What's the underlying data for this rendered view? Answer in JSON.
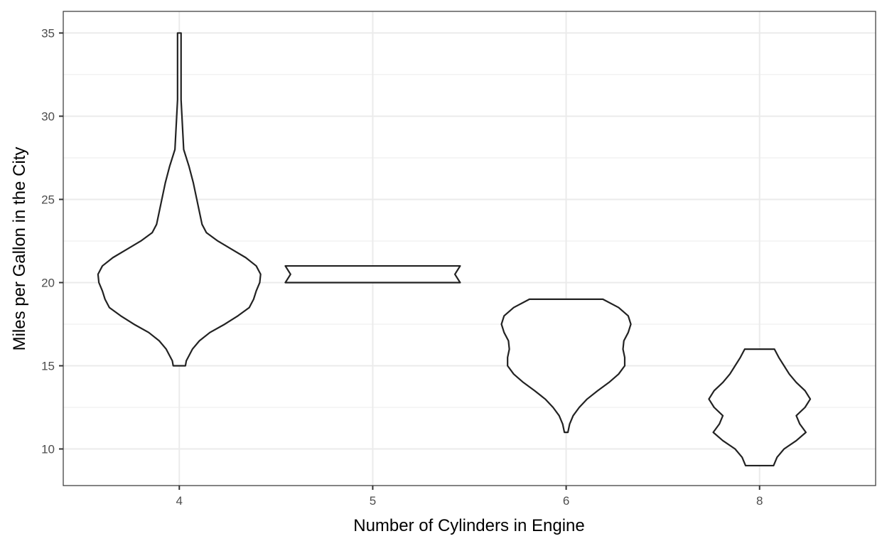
{
  "chart_data": {
    "type": "violin",
    "xlabel": "Number of Cylinders in Engine",
    "ylabel": "Miles per Gallon in the City",
    "categories": [
      "4",
      "5",
      "6",
      "8"
    ],
    "ylim": [
      7.8,
      36.3
    ],
    "yticks": [
      10,
      15,
      20,
      25,
      30,
      35
    ],
    "yminor": [
      12.5,
      17.5,
      22.5,
      27.5,
      32.5
    ],
    "grid": true,
    "fill_color": "#ffffff",
    "line_color": "#222222",
    "violins": [
      {
        "category": "4",
        "profile": [
          [
            15,
            0.07
          ],
          [
            15.3,
            0.08
          ],
          [
            15.6,
            0.11
          ],
          [
            16.0,
            0.15
          ],
          [
            16.5,
            0.23
          ],
          [
            17.0,
            0.35
          ],
          [
            17.5,
            0.52
          ],
          [
            18.0,
            0.67
          ],
          [
            18.5,
            0.8
          ],
          [
            19.0,
            0.85
          ],
          [
            19.5,
            0.88
          ],
          [
            20.0,
            0.92
          ],
          [
            20.5,
            0.93
          ],
          [
            21.0,
            0.88
          ],
          [
            21.5,
            0.76
          ],
          [
            22.0,
            0.6
          ],
          [
            22.5,
            0.44
          ],
          [
            23.0,
            0.31
          ],
          [
            23.5,
            0.26
          ],
          [
            24.0,
            0.24
          ],
          [
            25.0,
            0.2
          ],
          [
            26.0,
            0.16
          ],
          [
            27.0,
            0.11
          ],
          [
            28.0,
            0.05
          ],
          [
            29.0,
            0.04
          ],
          [
            30.0,
            0.03
          ],
          [
            31.0,
            0.02
          ],
          [
            32.0,
            0.02
          ],
          [
            33.0,
            0.02
          ],
          [
            34.0,
            0.02
          ],
          [
            35.0,
            0.02
          ]
        ]
      },
      {
        "category": "5",
        "profile": [
          [
            20.0,
            1.0
          ],
          [
            20.5,
            0.94
          ],
          [
            21.0,
            1.0
          ]
        ]
      },
      {
        "category": "6",
        "profile": [
          [
            11.0,
            0.02
          ],
          [
            11.5,
            0.04
          ],
          [
            12.0,
            0.08
          ],
          [
            12.5,
            0.15
          ],
          [
            13.0,
            0.24
          ],
          [
            13.5,
            0.36
          ],
          [
            14.0,
            0.49
          ],
          [
            14.5,
            0.6
          ],
          [
            15.0,
            0.67
          ],
          [
            15.5,
            0.67
          ],
          [
            16.0,
            0.65
          ],
          [
            16.5,
            0.66
          ],
          [
            17.0,
            0.71
          ],
          [
            17.5,
            0.74
          ],
          [
            18.0,
            0.71
          ],
          [
            18.5,
            0.6
          ],
          [
            19.0,
            0.42
          ]
        ]
      },
      {
        "category": "8",
        "profile": [
          [
            9.0,
            0.16
          ],
          [
            9.5,
            0.2
          ],
          [
            10.0,
            0.28
          ],
          [
            10.5,
            0.42
          ],
          [
            11.0,
            0.53
          ],
          [
            11.5,
            0.46
          ],
          [
            12.0,
            0.42
          ],
          [
            12.5,
            0.52
          ],
          [
            13.0,
            0.58
          ],
          [
            13.5,
            0.52
          ],
          [
            14.0,
            0.42
          ],
          [
            14.5,
            0.34
          ],
          [
            15.0,
            0.28
          ],
          [
            15.5,
            0.22
          ],
          [
            16.0,
            0.17
          ]
        ]
      }
    ]
  }
}
